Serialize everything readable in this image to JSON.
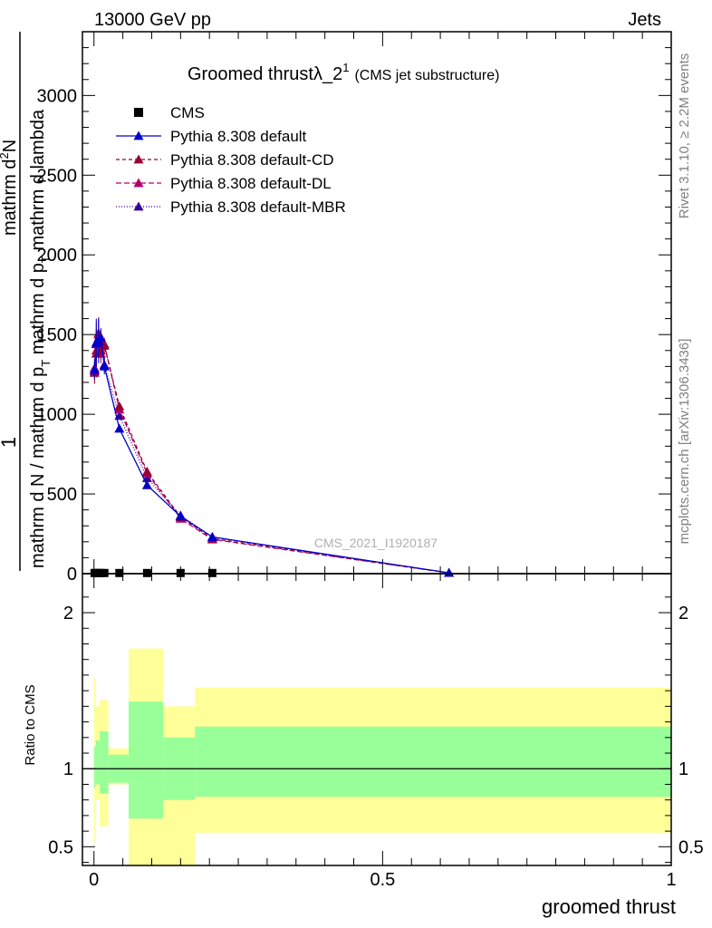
{
  "header": {
    "left": "13000 GeV pp",
    "right": "Jets"
  },
  "side_labels": {
    "rivet": "Rivet 3.1.10, ≥ 2.2M events",
    "mcplots": "mcplots.cern.ch [arXiv:1306.3436]"
  },
  "chart_data": {
    "type": "line",
    "title": "Groomed thrust",
    "title_math": "λ_2",
    "title_sup": "1",
    "title_note": "(CMS jet substructure)",
    "watermark": "CMS_2021_I1920187",
    "xlabel": "groomed thrust",
    "ylabel_parts": [
      "1",
      "mathrm d N / mathrm d p",
      "T",
      " mathrm d p",
      "T",
      " mathrm d lambda",
      "mathrm d",
      "2",
      "N"
    ],
    "ylabel_ratio": "Ratio to CMS",
    "xlim": [
      -0.02,
      1.0
    ],
    "ylim": [
      0,
      3400
    ],
    "ratio_ylim": [
      0.38,
      2.25
    ],
    "x_ticks": [
      {
        "v": 0,
        "label": "0"
      },
      {
        "v": 0.5,
        "label": "0.5"
      },
      {
        "v": 1,
        "label": "1"
      }
    ],
    "y_ticks": [
      {
        "v": 0,
        "label": "0"
      },
      {
        "v": 500,
        "label": "500"
      },
      {
        "v": 1000,
        "label": "1000"
      },
      {
        "v": 1500,
        "label": "1500"
      },
      {
        "v": 2000,
        "label": "2000"
      },
      {
        "v": 2500,
        "label": "2500"
      },
      {
        "v": 3000,
        "label": "3000"
      }
    ],
    "ratio_y_ticks": [
      {
        "v": 0.5,
        "label": "0.5"
      },
      {
        "v": 1,
        "label": "1"
      },
      {
        "v": 2,
        "label": "2"
      }
    ],
    "legend_position": "top-left",
    "cms": {
      "name": "CMS",
      "x": [
        0.001,
        0.004,
        0.008,
        0.012,
        0.018,
        0.044,
        0.092,
        0.15,
        0.205
      ],
      "y": [
        4,
        4,
        4,
        4,
        4,
        4,
        4,
        4,
        4
      ]
    },
    "series": [
      {
        "name": "Pythia 8.308 default",
        "color": "#0000cc",
        "dash": "",
        "x": [
          0.001,
          0.004,
          0.008,
          0.012,
          0.018,
          0.044,
          0.092,
          0.15,
          0.205,
          0.615
        ],
        "y": [
          1280,
          1450,
          1460,
          1480,
          1300,
          910,
          555,
          360,
          230,
          5
        ],
        "err": [
          60,
          150,
          140,
          60,
          50,
          0,
          0,
          0,
          0,
          0
        ]
      },
      {
        "name": "Pythia 8.308 default-CD",
        "color": "#990033",
        "dash": "4,3",
        "x": [
          0.001,
          0.004,
          0.008,
          0.012,
          0.018,
          0.044,
          0.092,
          0.15,
          0.205,
          0.615
        ],
        "y": [
          1260,
          1380,
          1500,
          1400,
          1430,
          1050,
          640,
          355,
          220,
          5
        ],
        "err": [
          70,
          150,
          100,
          60,
          40,
          0,
          0,
          0,
          0,
          0
        ]
      },
      {
        "name": "Pythia 8.308 default-DL",
        "color": "#b3006b",
        "dash": "6,3",
        "x": [
          0.001,
          0.004,
          0.008,
          0.012,
          0.018,
          0.044,
          0.092,
          0.15,
          0.205,
          0.615
        ],
        "y": [
          1290,
          1400,
          1510,
          1380,
          1440,
          1030,
          630,
          345,
          215,
          5
        ],
        "err": [
          60,
          140,
          100,
          60,
          40,
          0,
          0,
          0,
          0,
          0
        ]
      },
      {
        "name": "Pythia 8.308 default-MBR",
        "color": "#330099",
        "dash": "1,2",
        "x": [
          0.001,
          0.004,
          0.008,
          0.012,
          0.018,
          0.044,
          0.092,
          0.15,
          0.205,
          0.615
        ],
        "y": [
          1270,
          1440,
          1480,
          1460,
          1310,
          990,
          600,
          365,
          230,
          5
        ],
        "err": [
          60,
          140,
          120,
          60,
          50,
          0,
          0,
          0,
          0,
          0
        ]
      }
    ],
    "ratio_bands": [
      {
        "x0": 0.0,
        "x1": 0.003,
        "y_lo": 0.52,
        "y_hi": 1.58,
        "g_lo": 0.88,
        "g_hi": 1.14
      },
      {
        "x0": 0.003,
        "x1": 0.01,
        "y_lo": 0.8,
        "y_hi": 1.4,
        "g_lo": 0.9,
        "g_hi": 1.18
      },
      {
        "x0": 0.01,
        "x1": 0.025,
        "y_lo": 0.63,
        "y_hi": 1.44,
        "g_lo": 0.84,
        "g_hi": 1.24
      },
      {
        "x0": 0.025,
        "x1": 0.06,
        "y_lo": 0.9,
        "y_hi": 1.13,
        "g_lo": 0.91,
        "g_hi": 1.09
      },
      {
        "x0": 0.06,
        "x1": 0.12,
        "y_lo": 0.22,
        "y_hi": 1.77,
        "g_lo": 0.68,
        "g_hi": 1.43
      },
      {
        "x0": 0.12,
        "x1": 0.175,
        "y_lo": 0.32,
        "y_hi": 1.4,
        "g_lo": 0.8,
        "g_hi": 1.2
      },
      {
        "x0": 0.175,
        "x1": 1.0,
        "y_lo": 0.59,
        "y_hi": 1.52,
        "g_lo": 0.82,
        "g_hi": 1.27
      }
    ],
    "band_colors": {
      "yellow": "#ffff99",
      "green": "#99ff99"
    }
  }
}
